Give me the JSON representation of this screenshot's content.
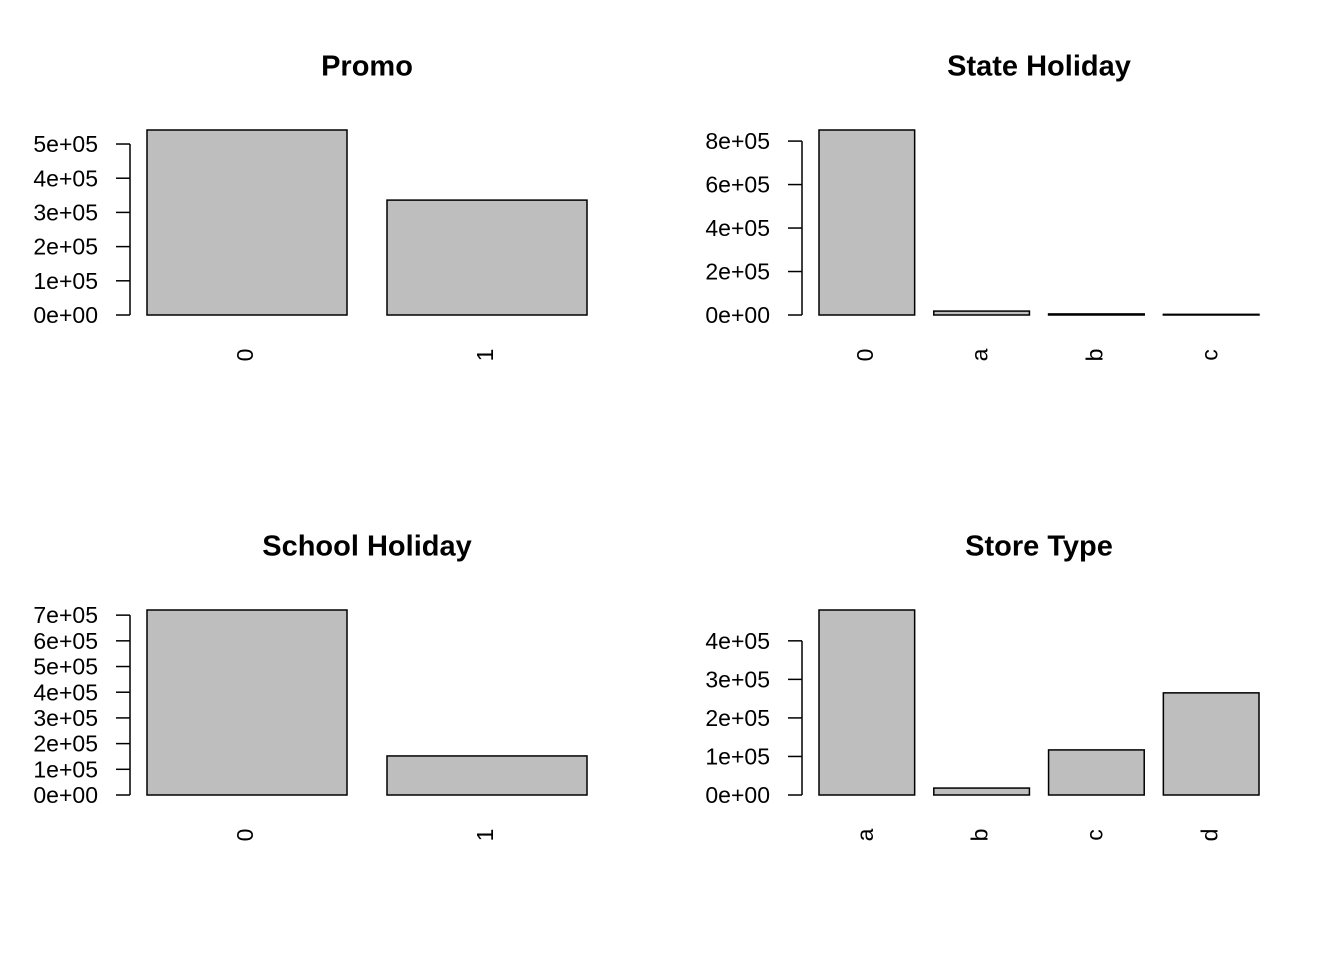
{
  "chart_data": [
    {
      "type": "bar",
      "title": "Promo",
      "categories": [
        "0",
        "1"
      ],
      "values": [
        541000,
        336000
      ],
      "color": "#bebebe",
      "ylim": [
        0,
        541000
      ],
      "yticks": [
        {
          "value": 0,
          "label": "0e+00"
        },
        {
          "value": 100000,
          "label": "1e+05"
        },
        {
          "value": 200000,
          "label": "2e+05"
        },
        {
          "value": 300000,
          "label": "3e+05"
        },
        {
          "value": 400000,
          "label": "4e+05"
        },
        {
          "value": 500000,
          "label": "5e+05"
        }
      ]
    },
    {
      "type": "bar",
      "title": "State Holiday",
      "categories": [
        "0",
        "a",
        "b",
        "c"
      ],
      "values": [
        851000,
        18000,
        5000,
        3000
      ],
      "color": "#bebebe",
      "ylim": [
        0,
        851000
      ],
      "yticks": [
        {
          "value": 0,
          "label": "0e+00"
        },
        {
          "value": 200000,
          "label": "2e+05"
        },
        {
          "value": 400000,
          "label": "4e+05"
        },
        {
          "value": 600000,
          "label": "6e+05"
        },
        {
          "value": 800000,
          "label": "8e+05"
        }
      ]
    },
    {
      "type": "bar",
      "title": "School Holiday",
      "categories": [
        "0",
        "1"
      ],
      "values": [
        720000,
        152000
      ],
      "color": "#bebebe",
      "ylim": [
        0,
        720000
      ],
      "yticks": [
        {
          "value": 0,
          "label": "0e+00"
        },
        {
          "value": 100000,
          "label": "1e+05"
        },
        {
          "value": 200000,
          "label": "2e+05"
        },
        {
          "value": 300000,
          "label": "3e+05"
        },
        {
          "value": 400000,
          "label": "4e+05"
        },
        {
          "value": 500000,
          "label": "5e+05"
        },
        {
          "value": 600000,
          "label": "6e+05"
        },
        {
          "value": 700000,
          "label": "7e+05"
        }
      ]
    },
    {
      "type": "bar",
      "title": "Store Type",
      "categories": [
        "a",
        "b",
        "c",
        "d"
      ],
      "values": [
        480000,
        18000,
        117000,
        265000
      ],
      "color": "#bebebe",
      "ylim": [
        0,
        480000
      ],
      "yticks": [
        {
          "value": 0,
          "label": "0e+00"
        },
        {
          "value": 100000,
          "label": "1e+05"
        },
        {
          "value": 200000,
          "label": "2e+05"
        },
        {
          "value": 300000,
          "label": "3e+05"
        },
        {
          "value": 400000,
          "label": "4e+05"
        }
      ]
    }
  ]
}
